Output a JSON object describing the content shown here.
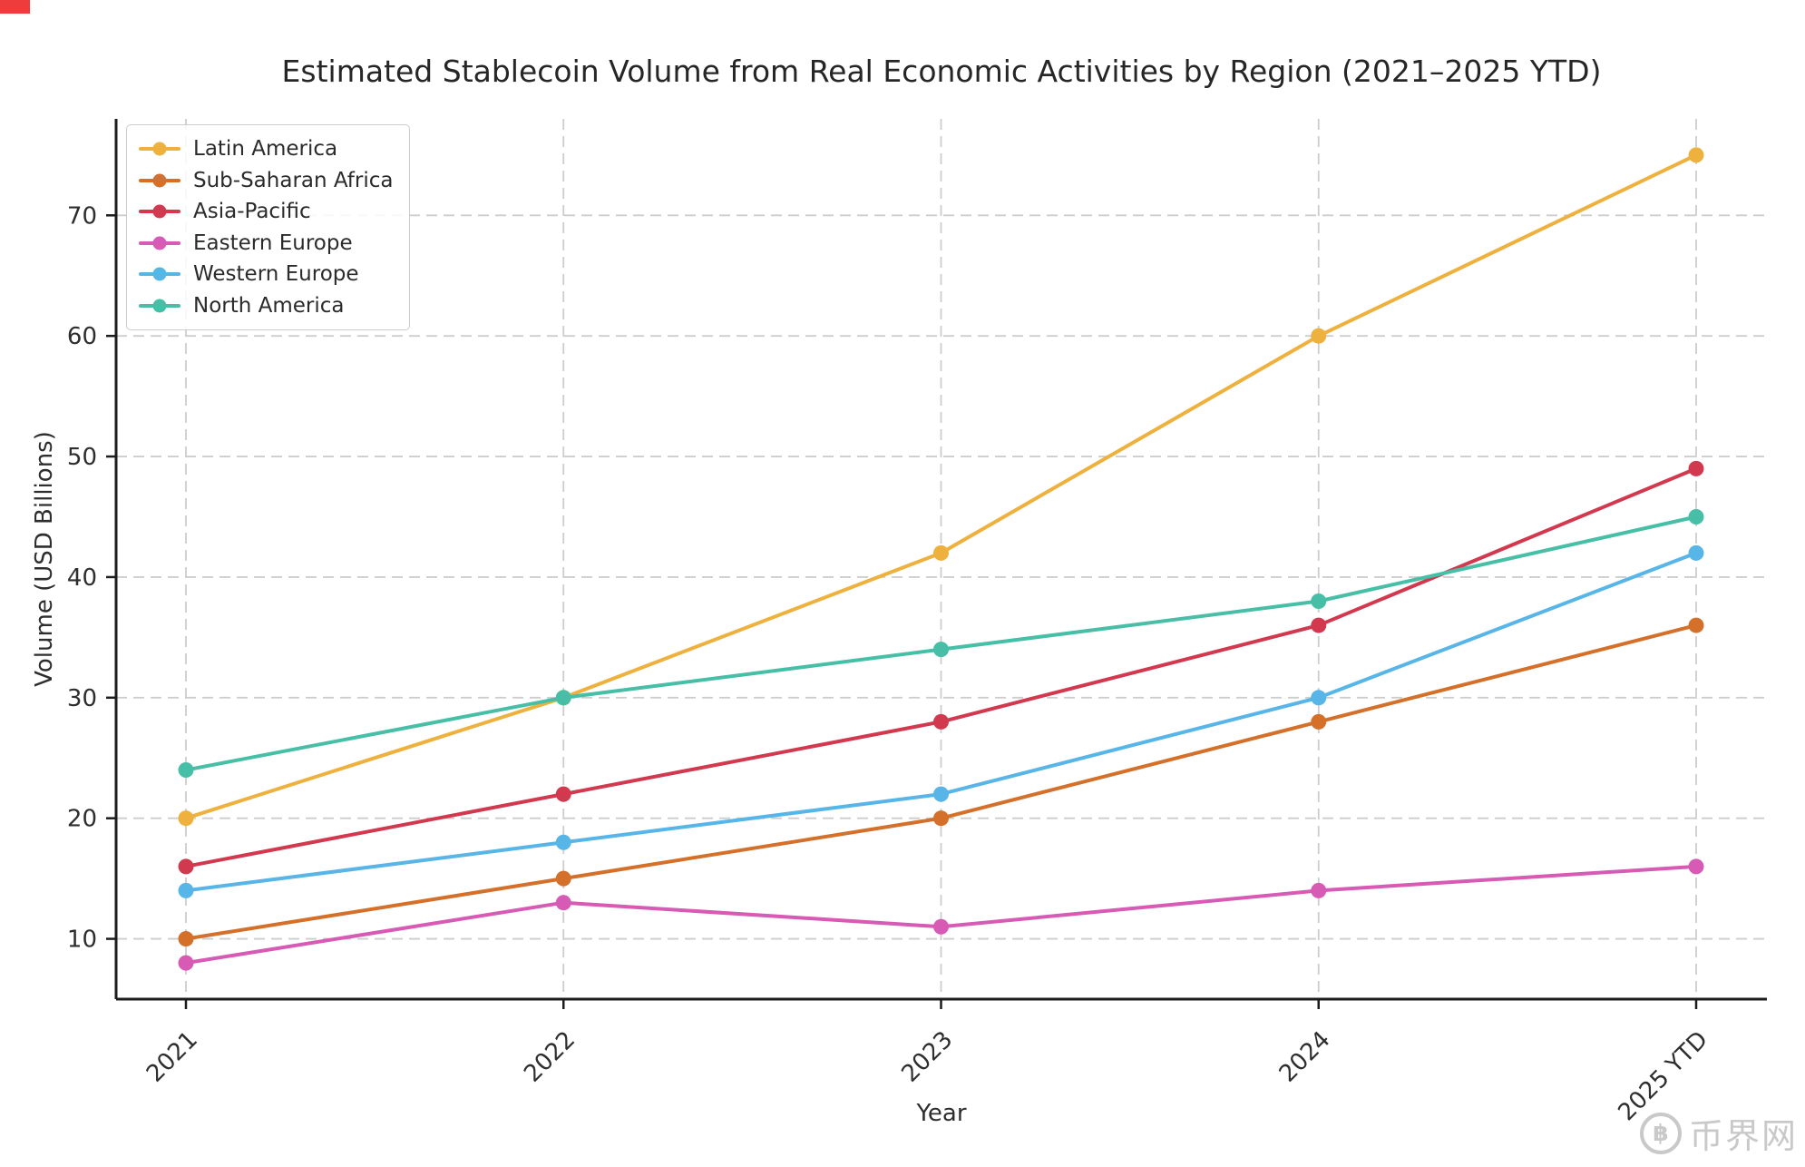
{
  "chart_data": {
    "type": "line",
    "title": "Estimated Stablecoin Volume from Real Economic Activities by Region (2021–2025 YTD)",
    "xlabel": "Year",
    "ylabel": "Volume (USD Billions)",
    "categories": [
      "2021",
      "2022",
      "2023",
      "2024",
      "2025 YTD"
    ],
    "yticks": [
      10,
      20,
      30,
      40,
      50,
      60,
      70
    ],
    "ylim": [
      5,
      78
    ],
    "grid": "dashed, both horizontal and vertical",
    "legend_position": "upper left",
    "series": [
      {
        "name": "Latin America",
        "color": "#EEB13D",
        "values": [
          20,
          30,
          42,
          60,
          75
        ]
      },
      {
        "name": "Sub-Saharan Africa",
        "color": "#D4702A",
        "values": [
          10,
          15,
          20,
          28,
          36
        ]
      },
      {
        "name": "Asia-Pacific",
        "color": "#D2384E",
        "values": [
          16,
          22,
          28,
          36,
          49
        ]
      },
      {
        "name": "Eastern Europe",
        "color": "#D75AB5",
        "values": [
          8,
          13,
          11,
          14,
          16
        ]
      },
      {
        "name": "Western Europe",
        "color": "#57B5E8",
        "values": [
          14,
          18,
          22,
          30,
          42
        ]
      },
      {
        "name": "North America",
        "color": "#47BFA7",
        "values": [
          24,
          30,
          34,
          38,
          45
        ]
      }
    ]
  },
  "watermark": {
    "icon": "btc-coin-icon",
    "icon_glyph": "฿",
    "text": "币界网"
  },
  "artifacts": {
    "corner_marker_color": "#ee3b3b"
  }
}
